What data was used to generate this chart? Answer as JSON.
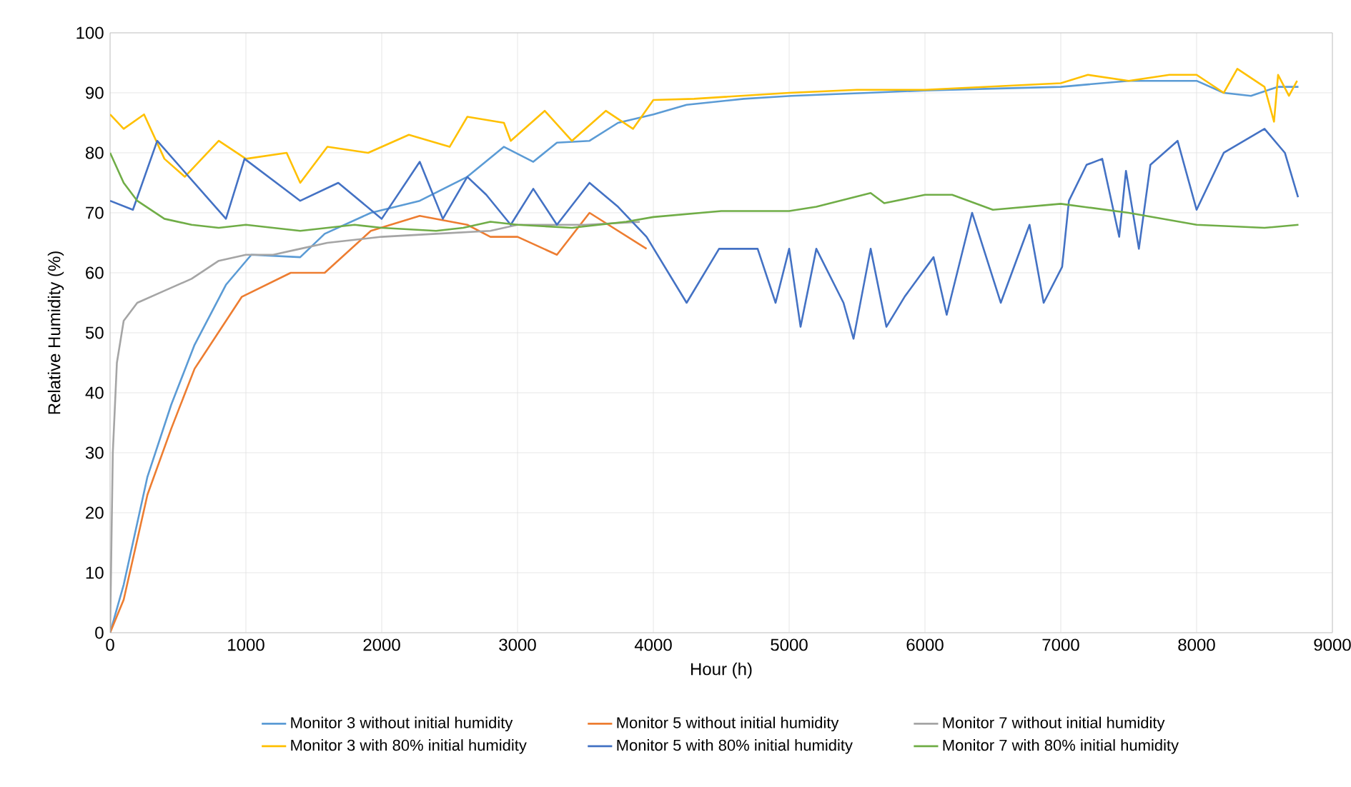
{
  "chart_data": {
    "type": "line",
    "xlabel": "Hour (h)",
    "ylabel": "Relative Humidity (%)",
    "xlim": [
      0,
      9000
    ],
    "ylim": [
      0,
      100
    ],
    "xticks": [
      0,
      1000,
      2000,
      3000,
      4000,
      5000,
      6000,
      7000,
      8000,
      9000
    ],
    "yticks": [
      0,
      10,
      20,
      30,
      40,
      50,
      60,
      70,
      80,
      90,
      100
    ],
    "grid": true,
    "legend": "bottom",
    "marker": "none",
    "line_style": "solid",
    "series": [
      {
        "name": "Monitor 3 without initial humidity",
        "color": "#5b9bd5",
        "x": [
          0,
          100,
          275,
          450,
          622,
          853,
          1040,
          1400,
          1580,
          1920,
          2280,
          2630,
          2900,
          3116,
          3290,
          3530,
          3740,
          4000,
          4245,
          4666,
          5016,
          5580,
          6000,
          7000,
          7500,
          8000,
          8200,
          8400,
          8600,
          8750
        ],
        "values": [
          0,
          8,
          26,
          38,
          48,
          58,
          63,
          62.6,
          66.5,
          70,
          72,
          76,
          81,
          78.5,
          81.7,
          82,
          85,
          86.4,
          88,
          89,
          89.5,
          90,
          90.4,
          91,
          92,
          92,
          90,
          89.5,
          91,
          91
        ]
      },
      {
        "name": "Monitor 5 without initial humidity",
        "color": "#ed7d31",
        "x": [
          0,
          100,
          275,
          450,
          622,
          970,
          1330,
          1580,
          1920,
          2280,
          2630,
          2800,
          3000,
          3290,
          3530,
          3950
        ],
        "values": [
          0,
          5.5,
          23,
          34,
          44,
          56,
          60,
          60,
          67,
          69.5,
          68,
          66,
          66,
          63,
          70,
          64
        ]
      },
      {
        "name": "Monitor 7 without initial humidity",
        "color": "#a5a5a5",
        "x": [
          0,
          20,
          50,
          100,
          200,
          400,
          600,
          800,
          1000,
          1200,
          1400,
          1600,
          2000,
          2400,
          2800,
          3000,
          3500,
          3900
        ],
        "values": [
          0,
          30,
          45,
          52,
          55,
          57,
          59,
          62,
          63,
          63,
          64,
          65,
          66,
          66.5,
          67,
          68,
          68,
          68.5
        ]
      },
      {
        "name": "Monitor 3 with 80% initial humidity",
        "color": "#ffc000",
        "x": [
          0,
          100,
          250,
          400,
          550,
          800,
          1000,
          1300,
          1400,
          1600,
          1900,
          2200,
          2500,
          2630,
          2900,
          2950,
          3200,
          3400,
          3650,
          3850,
          4000,
          4300,
          5000,
          5500,
          6000,
          7000,
          7200,
          7500,
          7800,
          8000,
          8200,
          8300,
          8500,
          8570,
          8600,
          8680,
          8740
        ],
        "values": [
          86.4,
          84,
          86.4,
          79,
          76,
          82,
          79,
          80,
          75,
          81,
          80,
          83,
          81,
          86,
          85,
          82,
          87,
          82,
          87,
          84,
          88.8,
          89,
          90,
          90.5,
          90.5,
          91.6,
          93,
          92,
          93,
          93,
          90,
          94,
          91,
          85.2,
          93,
          89.5,
          92
        ]
      },
      {
        "name": "Monitor 5 with 80% initial humidity",
        "color": "#4472c4",
        "x": [
          0,
          168,
          347,
          853,
          990,
          1400,
          1680,
          2000,
          2280,
          2450,
          2630,
          2770,
          2950,
          3116,
          3290,
          3530,
          3740,
          3950,
          4245,
          4484,
          4768,
          4900,
          5000,
          5084,
          5200,
          5400,
          5474,
          5600,
          5716,
          5850,
          6063,
          6160,
          6347,
          6558,
          6770,
          6874,
          7010,
          7060,
          7190,
          7305,
          7430,
          7480,
          7575,
          7660,
          7860,
          8000,
          8200,
          8500,
          8650,
          8747
        ],
        "values": [
          72,
          70.5,
          82,
          69,
          79,
          72,
          75,
          69,
          78.5,
          69,
          76,
          73,
          68,
          74,
          68,
          75,
          71,
          66,
          55,
          64,
          64,
          55,
          64,
          51,
          64,
          55,
          49,
          64,
          51,
          56,
          62.6,
          53,
          70,
          55,
          68,
          55,
          61,
          72,
          78,
          79,
          66,
          77,
          64,
          78,
          82,
          70.5,
          80,
          84,
          80,
          72.6
        ]
      },
      {
        "name": "Monitor 7 with 80% initial humidity",
        "color": "#70ad47",
        "x": [
          0,
          100,
          200,
          400,
          600,
          800,
          1000,
          1200,
          1400,
          1600,
          1800,
          2000,
          2400,
          2600,
          2800,
          3000,
          3400,
          3800,
          4000,
          4500,
          5000,
          5200,
          5600,
          5700,
          6000,
          6200,
          6500,
          7000,
          7500,
          8000,
          8500,
          8750
        ],
        "values": [
          80,
          75,
          72,
          69,
          68,
          67.5,
          68,
          67.5,
          67,
          67.5,
          68,
          67.5,
          67,
          67.5,
          68.5,
          68,
          67.5,
          68.5,
          69.3,
          70.3,
          70.3,
          71,
          73.3,
          71.6,
          73,
          73,
          70.5,
          71.5,
          70,
          68,
          67.5,
          68
        ]
      }
    ]
  }
}
